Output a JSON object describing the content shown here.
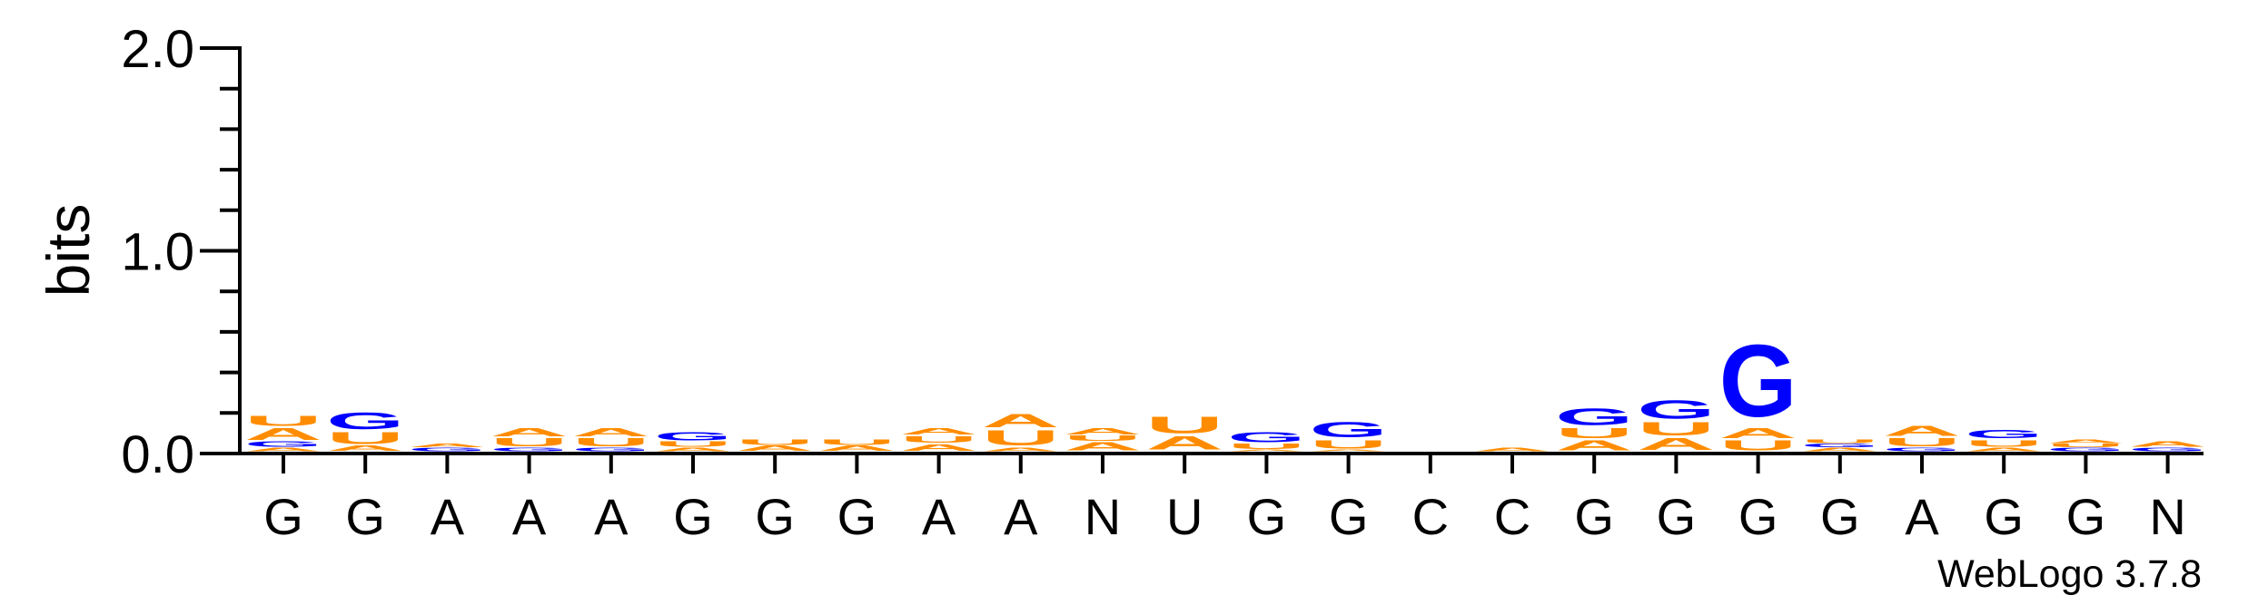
{
  "chart_data": {
    "type": "sequence-logo",
    "ylabel": "bits",
    "ylim": [
      0,
      2.0
    ],
    "yticks": [
      {
        "value": 0.0,
        "label": "0.0"
      },
      {
        "value": 1.0,
        "label": "1.0"
      },
      {
        "value": 2.0,
        "label": "2.0"
      }
    ],
    "credit": "WebLogo 3.7.8",
    "colors": {
      "G": "#0000ff",
      "A": "#ff8c00",
      "U": "#ff8c00",
      "C": "#0000ff",
      "N": "#000000"
    },
    "positions": [
      {
        "label": "G",
        "stack": [
          {
            "letter": "A",
            "height": 0.02
          },
          {
            "letter": "G",
            "height": 0.03
          },
          {
            "letter": "A",
            "height": 0.07
          },
          {
            "letter": "U",
            "height": 0.06
          }
        ]
      },
      {
        "label": "G",
        "stack": [
          {
            "letter": "A",
            "height": 0.03
          },
          {
            "letter": "U",
            "height": 0.07
          },
          {
            "letter": "G",
            "height": 0.1
          }
        ]
      },
      {
        "label": "A",
        "stack": [
          {
            "letter": "G",
            "height": 0.02
          },
          {
            "letter": "A",
            "height": 0.02
          }
        ]
      },
      {
        "label": "A",
        "stack": [
          {
            "letter": "G",
            "height": 0.02
          },
          {
            "letter": "U",
            "height": 0.05
          },
          {
            "letter": "A",
            "height": 0.05
          }
        ]
      },
      {
        "label": "A",
        "stack": [
          {
            "letter": "G",
            "height": 0.02
          },
          {
            "letter": "U",
            "height": 0.05
          },
          {
            "letter": "A",
            "height": 0.05
          }
        ]
      },
      {
        "label": "G",
        "stack": [
          {
            "letter": "A",
            "height": 0.02
          },
          {
            "letter": "U",
            "height": 0.03
          },
          {
            "letter": "G",
            "height": 0.05
          }
        ]
      },
      {
        "label": "G",
        "stack": [
          {
            "letter": "A",
            "height": 0.03
          },
          {
            "letter": "U",
            "height": 0.03
          }
        ]
      },
      {
        "label": "G",
        "stack": [
          {
            "letter": "A",
            "height": 0.03
          },
          {
            "letter": "U",
            "height": 0.03
          }
        ]
      },
      {
        "label": "A",
        "stack": [
          {
            "letter": "A",
            "height": 0.04
          },
          {
            "letter": "U",
            "height": 0.04
          },
          {
            "letter": "A",
            "height": 0.04
          }
        ]
      },
      {
        "label": "A",
        "stack": [
          {
            "letter": "A",
            "height": 0.02
          },
          {
            "letter": "U",
            "height": 0.09
          },
          {
            "letter": "A",
            "height": 0.08
          }
        ]
      },
      {
        "label": "N",
        "stack": [
          {
            "letter": "A",
            "height": 0.05
          },
          {
            "letter": "U",
            "height": 0.03
          },
          {
            "letter": "A",
            "height": 0.04
          }
        ]
      },
      {
        "label": "U",
        "stack": [
          {
            "letter": "A",
            "height": 0.08
          },
          {
            "letter": "U",
            "height": 0.1
          }
        ]
      },
      {
        "label": "G",
        "stack": [
          {
            "letter": "A",
            "height": 0.01
          },
          {
            "letter": "U",
            "height": 0.03
          },
          {
            "letter": "G",
            "height": 0.06
          }
        ]
      },
      {
        "label": "G",
        "stack": [
          {
            "letter": "A",
            "height": 0.01
          },
          {
            "letter": "U",
            "height": 0.05
          },
          {
            "letter": "G",
            "height": 0.09
          }
        ]
      },
      {
        "label": "C",
        "stack": []
      },
      {
        "label": "C",
        "stack": [
          {
            "letter": "A",
            "height": 0.02
          }
        ]
      },
      {
        "label": "G",
        "stack": [
          {
            "letter": "A",
            "height": 0.06
          },
          {
            "letter": "U",
            "height": 0.06
          },
          {
            "letter": "G",
            "height": 0.1
          }
        ]
      },
      {
        "label": "G",
        "stack": [
          {
            "letter": "A",
            "height": 0.07
          },
          {
            "letter": "U",
            "height": 0.08
          },
          {
            "letter": "G",
            "height": 0.11
          }
        ]
      },
      {
        "label": "G",
        "stack": [
          {
            "letter": "U",
            "height": 0.06
          },
          {
            "letter": "A",
            "height": 0.06
          },
          {
            "letter": "G",
            "height": 0.43
          }
        ]
      },
      {
        "label": "G",
        "stack": [
          {
            "letter": "A",
            "height": 0.02
          },
          {
            "letter": "G",
            "height": 0.02
          },
          {
            "letter": "U",
            "height": 0.02
          }
        ]
      },
      {
        "label": "A",
        "stack": [
          {
            "letter": "G",
            "height": 0.02
          },
          {
            "letter": "U",
            "height": 0.05
          },
          {
            "letter": "A",
            "height": 0.06
          }
        ]
      },
      {
        "label": "G",
        "stack": [
          {
            "letter": "A",
            "height": 0.02
          },
          {
            "letter": "U",
            "height": 0.04
          },
          {
            "letter": "G",
            "height": 0.05
          }
        ]
      },
      {
        "label": "G",
        "stack": [
          {
            "letter": "G",
            "height": 0.02
          },
          {
            "letter": "U",
            "height": 0.02
          },
          {
            "letter": "A",
            "height": 0.02
          }
        ]
      },
      {
        "label": "N",
        "stack": [
          {
            "letter": "G",
            "height": 0.02
          },
          {
            "letter": "A",
            "height": 0.03
          }
        ]
      }
    ]
  }
}
